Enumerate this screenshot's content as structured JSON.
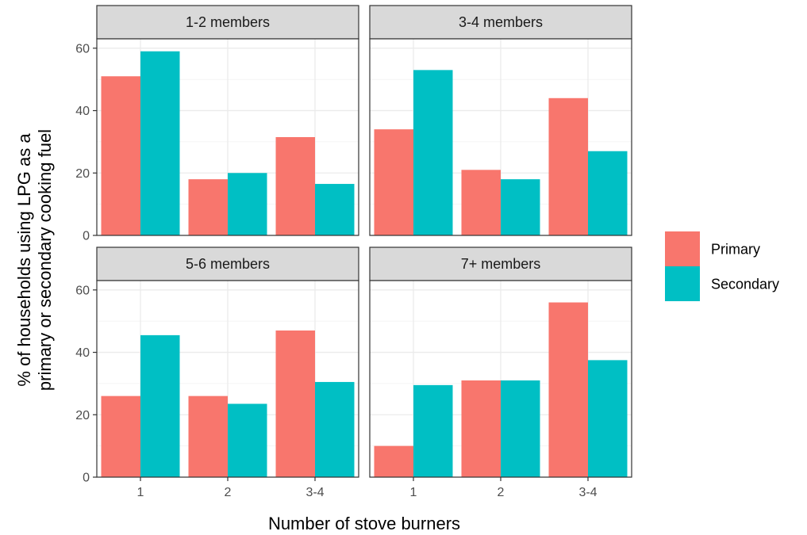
{
  "chart_data": {
    "type": "bar",
    "xlabel": "Number of stove burners",
    "ylabel_lines": [
      "% of households using LPG as a",
      "primary or secondary cooking fuel"
    ],
    "categories": [
      "1",
      "2",
      "3-4"
    ],
    "ylim": [
      0,
      63
    ],
    "yticks": [
      0,
      20,
      40,
      60
    ],
    "grid": true,
    "legend": {
      "position": "right",
      "entries": [
        {
          "name": "Primary",
          "color": "#F8766D"
        },
        {
          "name": "Secondary",
          "color": "#00BFC4"
        }
      ]
    },
    "panels": [
      {
        "title": "1-2 members",
        "series": [
          {
            "name": "Primary",
            "values": [
              51,
              18,
              31.5
            ]
          },
          {
            "name": "Secondary",
            "values": [
              59,
              20,
              16.5
            ]
          }
        ]
      },
      {
        "title": "3-4 members",
        "series": [
          {
            "name": "Primary",
            "values": [
              34,
              21,
              44
            ]
          },
          {
            "name": "Secondary",
            "values": [
              53,
              18,
              27
            ]
          }
        ]
      },
      {
        "title": "5-6 members",
        "series": [
          {
            "name": "Primary",
            "values": [
              26,
              26,
              47
            ]
          },
          {
            "name": "Secondary",
            "values": [
              45.5,
              23.5,
              30.5
            ]
          }
        ]
      },
      {
        "title": "7+ members",
        "series": [
          {
            "name": "Primary",
            "values": [
              10,
              31,
              56
            ]
          },
          {
            "name": "Secondary",
            "values": [
              29.5,
              31,
              37.5
            ]
          }
        ]
      }
    ]
  }
}
